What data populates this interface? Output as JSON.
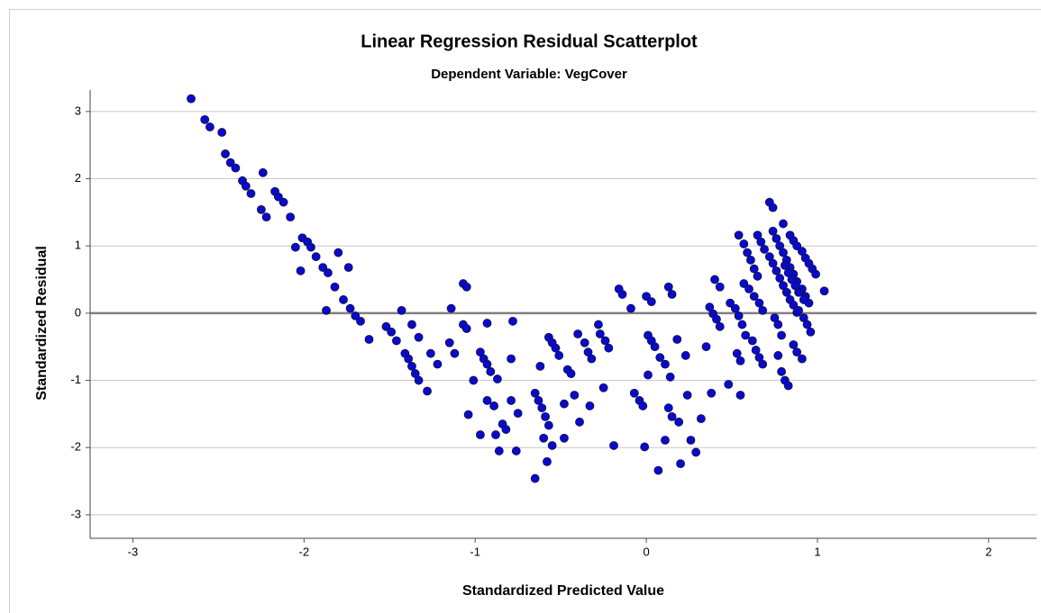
{
  "chart_data": {
    "type": "scatter",
    "title": "Linear Regression Residual Scatterplot",
    "subtitle": "Dependent Variable: VegCover",
    "x_label": "Standardized Predicted Value",
    "y_label": "Standardized Residual",
    "xlim": [
      -3.25,
      2.28
    ],
    "ylim": [
      -3.35,
      3.32
    ],
    "xticks": [
      -3,
      -2,
      -1,
      0,
      1,
      2
    ],
    "yticks": [
      -3,
      -2,
      -1,
      0,
      1,
      2,
      3
    ],
    "grid": true,
    "reference_line_y": 0,
    "series": [
      {
        "color": "#0a0acc",
        "x": [
          -2.66,
          -2.58,
          -2.55,
          -2.48,
          -2.46,
          -2.43,
          -2.4,
          -2.36,
          -2.34,
          -2.31,
          -2.24,
          -2.25,
          -2.22,
          -2.17,
          -2.15,
          -2.12,
          -2.08,
          -2.05,
          -2.01,
          -1.98,
          -1.96,
          -1.93,
          -1.89,
          -1.86,
          -2.02,
          -1.8,
          -1.87,
          -1.74,
          -1.77,
          -1.73,
          -1.7,
          -1.67,
          -1.62,
          -1.82,
          -1.52,
          -1.49,
          -1.46,
          -1.43,
          -1.41,
          -1.39,
          -1.37,
          -1.35,
          -1.33,
          -1.28,
          -1.37,
          -1.33,
          -1.26,
          -1.22,
          -1.14,
          -1.15,
          -1.12,
          -1.07,
          -1.05,
          -1.07,
          -1.05,
          -1.04,
          -1.01,
          -0.97,
          -0.95,
          -0.93,
          -0.91,
          -0.93,
          -0.89,
          -0.88,
          -0.86,
          -0.97,
          -0.87,
          -0.84,
          -0.82,
          -0.93,
          -0.79,
          -0.79,
          -0.78,
          -0.75,
          -0.76,
          -0.65,
          -0.63,
          -0.61,
          -0.59,
          -0.57,
          -0.6,
          -0.58,
          -0.65,
          -0.62,
          -0.57,
          -0.55,
          -0.53,
          -0.51,
          -0.55,
          -0.46,
          -0.48,
          -0.48,
          -0.44,
          -0.42,
          -0.39,
          -0.4,
          -0.36,
          -0.34,
          -0.32,
          -0.28,
          -0.27,
          -0.24,
          -0.22,
          -0.25,
          -0.33,
          -0.19,
          -0.16,
          -0.14,
          -0.09,
          -0.07,
          -0.04,
          -0.02,
          -0.01,
          0.01,
          0.0,
          0.03,
          0.01,
          0.03,
          0.05,
          0.07,
          0.08,
          0.11,
          0.13,
          0.15,
          0.13,
          0.15,
          0.11,
          0.14,
          0.18,
          0.19,
          0.2,
          0.24,
          0.26,
          0.29,
          0.32,
          0.23,
          0.35,
          0.37,
          0.39,
          0.41,
          0.43,
          0.4,
          0.43,
          0.38,
          0.48,
          0.49,
          0.52,
          0.54,
          0.55,
          0.56,
          0.58,
          0.53,
          0.55,
          0.54,
          0.57,
          0.59,
          0.61,
          0.63,
          0.65,
          0.57,
          0.6,
          0.63,
          0.66,
          0.68,
          0.62,
          0.64,
          0.66,
          0.68,
          0.65,
          0.67,
          0.69,
          0.72,
          0.74,
          0.76,
          0.78,
          0.8,
          0.82,
          0.84,
          0.86,
          0.88,
          0.72,
          0.74,
          0.75,
          0.77,
          0.79,
          0.77,
          0.79,
          0.81,
          0.83,
          0.74,
          0.76,
          0.78,
          0.8,
          0.82,
          0.84,
          0.86,
          0.88,
          0.91,
          0.93,
          0.95,
          0.86,
          0.88,
          0.91,
          0.8,
          0.84,
          0.86,
          0.88,
          0.91,
          0.93,
          0.95,
          0.97,
          0.99,
          1.04,
          0.89,
          0.92,
          0.94,
          0.96,
          0.81,
          0.83,
          0.85,
          0.87,
          0.89,
          0.92
        ],
        "values": [
          3.19,
          2.88,
          2.77,
          2.69,
          2.37,
          2.24,
          2.16,
          1.97,
          1.89,
          1.78,
          2.09,
          1.54,
          1.43,
          1.81,
          1.73,
          1.65,
          1.43,
          0.98,
          1.12,
          1.06,
          0.98,
          0.84,
          0.68,
          0.6,
          0.63,
          0.9,
          0.04,
          0.68,
          0.2,
          0.07,
          -0.04,
          -0.12,
          -0.39,
          0.39,
          -0.2,
          -0.28,
          -0.41,
          0.04,
          -0.6,
          -0.68,
          -0.79,
          -0.9,
          -1.0,
          -1.16,
          -0.17,
          -0.36,
          -0.6,
          -0.76,
          0.07,
          -0.44,
          -0.6,
          0.44,
          0.39,
          -0.17,
          -0.23,
          -1.51,
          -1.0,
          -0.58,
          -0.68,
          -0.76,
          -0.87,
          -1.3,
          -1.38,
          -1.81,
          -2.05,
          -1.81,
          -0.98,
          -1.65,
          -1.73,
          -0.15,
          -0.68,
          -1.3,
          -0.12,
          -1.49,
          -2.05,
          -1.19,
          -1.3,
          -1.41,
          -1.54,
          -1.67,
          -1.86,
          -2.21,
          -2.46,
          -0.79,
          -0.36,
          -0.44,
          -0.52,
          -0.63,
          -1.97,
          -0.84,
          -1.35,
          -1.86,
          -0.9,
          -1.22,
          -1.62,
          -0.31,
          -0.44,
          -0.58,
          -0.68,
          -0.17,
          -0.31,
          -0.41,
          -0.52,
          -1.11,
          -1.38,
          -1.97,
          0.36,
          0.28,
          0.07,
          -1.19,
          -1.3,
          -1.38,
          -1.99,
          -0.92,
          0.25,
          0.17,
          -0.33,
          -0.41,
          -0.5,
          -2.34,
          -0.66,
          -0.76,
          0.39,
          0.28,
          -1.41,
          -1.54,
          -1.89,
          -0.95,
          -0.39,
          -1.62,
          -2.24,
          -1.22,
          -1.89,
          -2.07,
          -1.57,
          -0.63,
          -0.5,
          0.09,
          -0.01,
          -0.09,
          -0.2,
          0.5,
          0.39,
          -1.19,
          -1.06,
          0.15,
          0.07,
          -0.04,
          -1.22,
          -0.17,
          -0.33,
          -0.6,
          -0.71,
          1.16,
          1.03,
          0.9,
          0.79,
          0.66,
          0.55,
          0.44,
          0.36,
          0.25,
          0.15,
          0.04,
          -0.41,
          -0.55,
          -0.66,
          -0.76,
          1.16,
          1.06,
          0.95,
          0.84,
          0.74,
          0.63,
          0.52,
          0.41,
          0.31,
          0.2,
          0.12,
          0.01,
          1.65,
          1.57,
          -0.07,
          -0.17,
          -0.33,
          -0.63,
          -0.87,
          -1.0,
          -1.08,
          1.22,
          1.11,
          1.0,
          0.9,
          0.79,
          0.68,
          0.58,
          0.47,
          0.36,
          0.25,
          0.15,
          -0.47,
          -0.58,
          -0.68,
          1.33,
          1.16,
          1.08,
          1.0,
          0.92,
          0.82,
          0.74,
          0.66,
          0.58,
          0.33,
          0.04,
          -0.07,
          -0.17,
          -0.28,
          0.71,
          0.6,
          0.5,
          0.41,
          0.31,
          0.2
        ]
      }
    ]
  }
}
